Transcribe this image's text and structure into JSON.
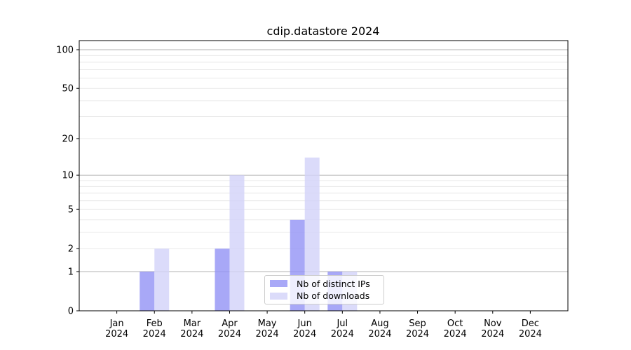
{
  "title": "cdip.datastore 2024",
  "chart_data": {
    "type": "bar",
    "title": "cdip.datastore 2024",
    "categories": [
      "Jan",
      "Feb",
      "Mar",
      "Apr",
      "May",
      "Jun",
      "Jul",
      "Aug",
      "Sep",
      "Oct",
      "Nov",
      "Dec"
    ],
    "year_label": "2024",
    "series": [
      {
        "name": "Nb of distinct IPs",
        "color": "#9292f5",
        "values": [
          0,
          1,
          0,
          2,
          0,
          4,
          1,
          0,
          0,
          0,
          0,
          0
        ]
      },
      {
        "name": "Nb of downloads",
        "color": "#d2d2f9",
        "values": [
          0,
          2,
          0,
          10,
          0,
          14,
          1,
          0,
          0,
          0,
          0,
          0
        ]
      }
    ],
    "bar_alpha": 0.8,
    "scale": "log1p",
    "ylim": [
      0,
      100
    ],
    "y_tick_labels": [
      0,
      1,
      2,
      5,
      10,
      20,
      50,
      100
    ],
    "gridlines_major": [
      1,
      10,
      100
    ],
    "gridlines_minor": [
      2,
      3,
      4,
      5,
      6,
      7,
      8,
      9,
      20,
      30,
      40,
      50,
      60,
      70,
      80,
      90
    ],
    "grid": true,
    "legend_position": "lower center",
    "xlabel": "",
    "ylabel": "",
    "colors": {
      "spine": "#000000",
      "grid_major": "#b3b3b3",
      "grid_minor": "#e9e9e9",
      "background": "#ffffff",
      "text": "#000000"
    }
  }
}
